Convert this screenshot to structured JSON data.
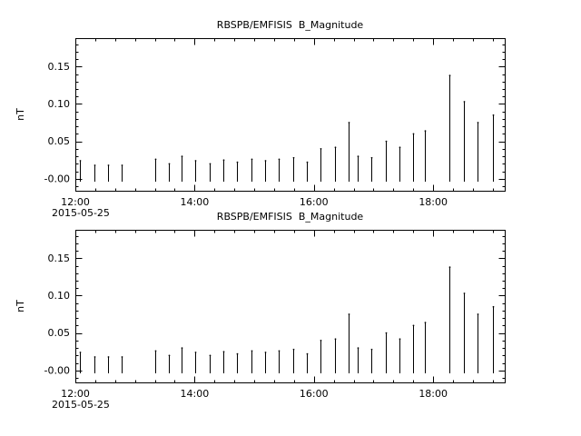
{
  "window": {
    "background": "#ffffff",
    "foreground": "#000000"
  },
  "chart_data": [
    {
      "type": "bar",
      "title": "RBSPB/EMFISIS  B_Magnitude",
      "ylabel": "nT",
      "date_label": "2015-05-25",
      "x_tick_labels": [
        "12:00",
        "14:00",
        "16:00",
        "18:00"
      ],
      "x_tick_minutes": [
        0,
        120,
        240,
        360
      ],
      "x_minor_step_minutes": 20,
      "x_range_minutes": [
        0,
        432
      ],
      "ylim": [
        -0.016,
        0.188
      ],
      "y_ticks": [
        0.0,
        0.05,
        0.1,
        0.15
      ],
      "y_tick_labels": [
        "-0.00",
        "0.05",
        "0.10",
        "0.15"
      ],
      "y_minor_step": 0.01,
      "bar_base": -0.004,
      "bars_t_minutes": [
        5,
        19,
        33,
        47,
        80,
        94,
        107,
        121,
        135,
        149,
        163,
        177,
        191,
        205,
        219,
        233,
        247,
        261,
        275,
        284,
        298,
        312,
        326,
        340,
        352,
        376,
        391,
        405,
        420
      ],
      "bars_v_nT": [
        0.024,
        0.018,
        0.018,
        0.018,
        0.026,
        0.02,
        0.03,
        0.024,
        0.02,
        0.025,
        0.022,
        0.026,
        0.024,
        0.026,
        0.028,
        0.022,
        0.04,
        0.042,
        0.075,
        0.03,
        0.028,
        0.05,
        0.042,
        0.06,
        0.064,
        0.138,
        0.103,
        0.075,
        0.085
      ],
      "line_color": "#000000",
      "grid": false,
      "legend": "none"
    },
    {
      "type": "bar",
      "title": "RBSPB/EMFISIS  B_Magnitude",
      "ylabel": "nT",
      "date_label": "2015-05-25",
      "x_tick_labels": [
        "12:00",
        "14:00",
        "16:00",
        "18:00"
      ],
      "x_tick_minutes": [
        0,
        120,
        240,
        360
      ],
      "x_minor_step_minutes": 20,
      "x_range_minutes": [
        0,
        432
      ],
      "ylim": [
        -0.016,
        0.188
      ],
      "y_ticks": [
        0.0,
        0.05,
        0.1,
        0.15
      ],
      "y_tick_labels": [
        "-0.00",
        "0.05",
        "0.10",
        "0.15"
      ],
      "y_minor_step": 0.01,
      "bar_base": -0.004,
      "bars_t_minutes": [
        5,
        19,
        33,
        47,
        80,
        94,
        107,
        121,
        135,
        149,
        163,
        177,
        191,
        205,
        219,
        233,
        247,
        261,
        275,
        284,
        298,
        312,
        326,
        340,
        352,
        376,
        391,
        405,
        420
      ],
      "bars_v_nT": [
        0.024,
        0.018,
        0.018,
        0.018,
        0.026,
        0.02,
        0.03,
        0.024,
        0.02,
        0.025,
        0.022,
        0.026,
        0.024,
        0.026,
        0.028,
        0.022,
        0.04,
        0.042,
        0.075,
        0.03,
        0.028,
        0.05,
        0.042,
        0.06,
        0.064,
        0.138,
        0.103,
        0.075,
        0.085
      ],
      "line_color": "#000000",
      "grid": false,
      "legend": "none"
    }
  ]
}
